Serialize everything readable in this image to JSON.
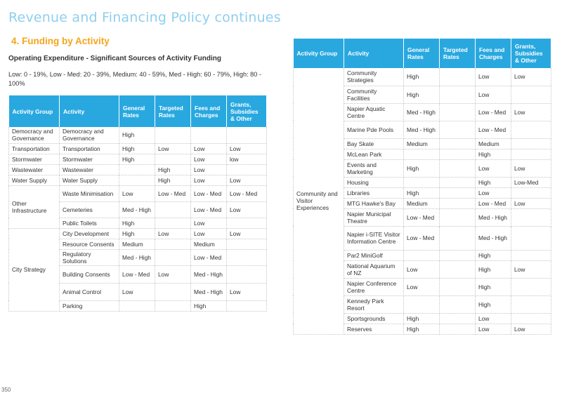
{
  "page_title": "Revenue and Financing Policy continues",
  "section_heading": "4.  Funding by Activity",
  "subheading": "Operating Expenditure - Significant Sources of Activity Funding",
  "legend_text": "Low: 0 - 19%, Low - Med: 20 - 39%, Medium: 40 - 59%, Med - High: 60 - 79%, High: 80 - 100%",
  "page_number": "350",
  "columns": [
    "Activity Group",
    "Activity",
    "General Rates",
    "Targeted Rates",
    "Fees and Charges",
    "Grants, Subsidies & Other"
  ],
  "left_table": {
    "groups": [
      {
        "name": "Democracy and Governance",
        "rows": [
          {
            "activity": "Democracy and Governance",
            "general": "High",
            "targeted": "",
            "fees": "",
            "grants": ""
          }
        ]
      },
      {
        "name": "Transportation",
        "rows": [
          {
            "activity": "Transportation",
            "general": "High",
            "targeted": "Low",
            "fees": "Low",
            "grants": "Low"
          }
        ]
      },
      {
        "name": "Stormwater",
        "rows": [
          {
            "activity": "Stormwater",
            "general": "High",
            "targeted": "",
            "fees": "Low",
            "grants": "low"
          }
        ]
      },
      {
        "name": "Wastewater",
        "rows": [
          {
            "activity": "Wastewater",
            "general": "",
            "targeted": "High",
            "fees": "Low",
            "grants": ""
          }
        ]
      },
      {
        "name": "Water Supply",
        "rows": [
          {
            "activity": "Water Supply",
            "general": "",
            "targeted": "High",
            "fees": "Low",
            "grants": "Low"
          }
        ]
      },
      {
        "name": "Other Infrastructure",
        "rows": [
          {
            "activity": "Waste Minimisation",
            "general": "Low",
            "targeted": "Low - Med",
            "fees": "Low - Med",
            "grants": "Low - Med"
          },
          {
            "activity": "Cemeteries",
            "general": "Med - High",
            "targeted": "",
            "fees": "Low - Med",
            "grants": "Low"
          },
          {
            "activity": "Public Toilets",
            "general": "High",
            "targeted": "",
            "fees": "Low",
            "grants": ""
          }
        ]
      },
      {
        "name": "City Strategy",
        "rows": [
          {
            "activity": "City Development",
            "general": "High",
            "targeted": "Low",
            "fees": "Low",
            "grants": "Low"
          },
          {
            "activity": "Resource Consents",
            "general": "Medium",
            "targeted": "",
            "fees": "Medium",
            "grants": ""
          },
          {
            "activity": "Regulatory Solutions",
            "general": "Med - High",
            "targeted": "",
            "fees": "Low - Med",
            "grants": ""
          },
          {
            "activity": "Building Consents",
            "general": "Low - Med",
            "targeted": "Low",
            "fees": "Med - High",
            "grants": ""
          },
          {
            "activity": "Animal Control",
            "general": "Low",
            "targeted": "",
            "fees": "Med - High",
            "grants": "Low"
          },
          {
            "activity": "Parking",
            "general": "",
            "targeted": "",
            "fees": "High",
            "grants": ""
          }
        ]
      }
    ]
  },
  "right_table": {
    "groups": [
      {
        "name": "Community and Visitor Experiences",
        "rows": [
          {
            "activity": "Community Strategies",
            "general": "High",
            "targeted": "",
            "fees": "Low",
            "grants": "Low"
          },
          {
            "activity": "Community Facilities",
            "general": "High",
            "targeted": "",
            "fees": "Low",
            "grants": ""
          },
          {
            "activity": "Napier Aquatic Centre",
            "general": "Med - High",
            "targeted": "",
            "fees": "Low - Med",
            "grants": "Low"
          },
          {
            "activity": "Marine Pde Pools",
            "general": "Med - High",
            "targeted": "",
            "fees": "Low - Med",
            "grants": ""
          },
          {
            "activity": "Bay Skate",
            "general": "Medium",
            "targeted": "",
            "fees": "Medium",
            "grants": ""
          },
          {
            "activity": "McLean Park",
            "general": "",
            "targeted": "",
            "fees": "High",
            "grants": ""
          },
          {
            "activity": "Events and Marketing",
            "general": "High",
            "targeted": "",
            "fees": "Low",
            "grants": "Low"
          },
          {
            "activity": "Housing",
            "general": "",
            "targeted": "",
            "fees": "High",
            "grants": "Low-Med"
          },
          {
            "activity": "Libraries",
            "general": "High",
            "targeted": "",
            "fees": "Low",
            "grants": ""
          },
          {
            "activity": "MTG Hawke's Bay",
            "general": "Medium",
            "targeted": "",
            "fees": "Low - Med",
            "grants": "Low"
          },
          {
            "activity": "Napier Municipal Theatre",
            "general": "Low - Med",
            "targeted": "",
            "fees": "Med - High",
            "grants": ""
          },
          {
            "activity": "Napier i-SITE Visitor Information Centre",
            "general": "Low - Med",
            "targeted": "",
            "fees": "Med - High",
            "grants": ""
          },
          {
            "activity": "Par2 MiniGolf",
            "general": "",
            "targeted": "",
            "fees": "High",
            "grants": ""
          },
          {
            "activity": "National Aquarium of NZ",
            "general": "Low",
            "targeted": "",
            "fees": "High",
            "grants": "Low"
          },
          {
            "activity": "Napier Conference Centre",
            "general": "Low",
            "targeted": "",
            "fees": "High",
            "grants": ""
          },
          {
            "activity": "Kennedy Park Resort",
            "general": "",
            "targeted": "",
            "fees": "High",
            "grants": ""
          },
          {
            "activity": "Sportsgrounds",
            "general": "High",
            "targeted": "",
            "fees": "Low",
            "grants": ""
          },
          {
            "activity": "Reserves",
            "general": "High",
            "targeted": "",
            "fees": "Low",
            "grants": "Low"
          }
        ]
      }
    ]
  }
}
